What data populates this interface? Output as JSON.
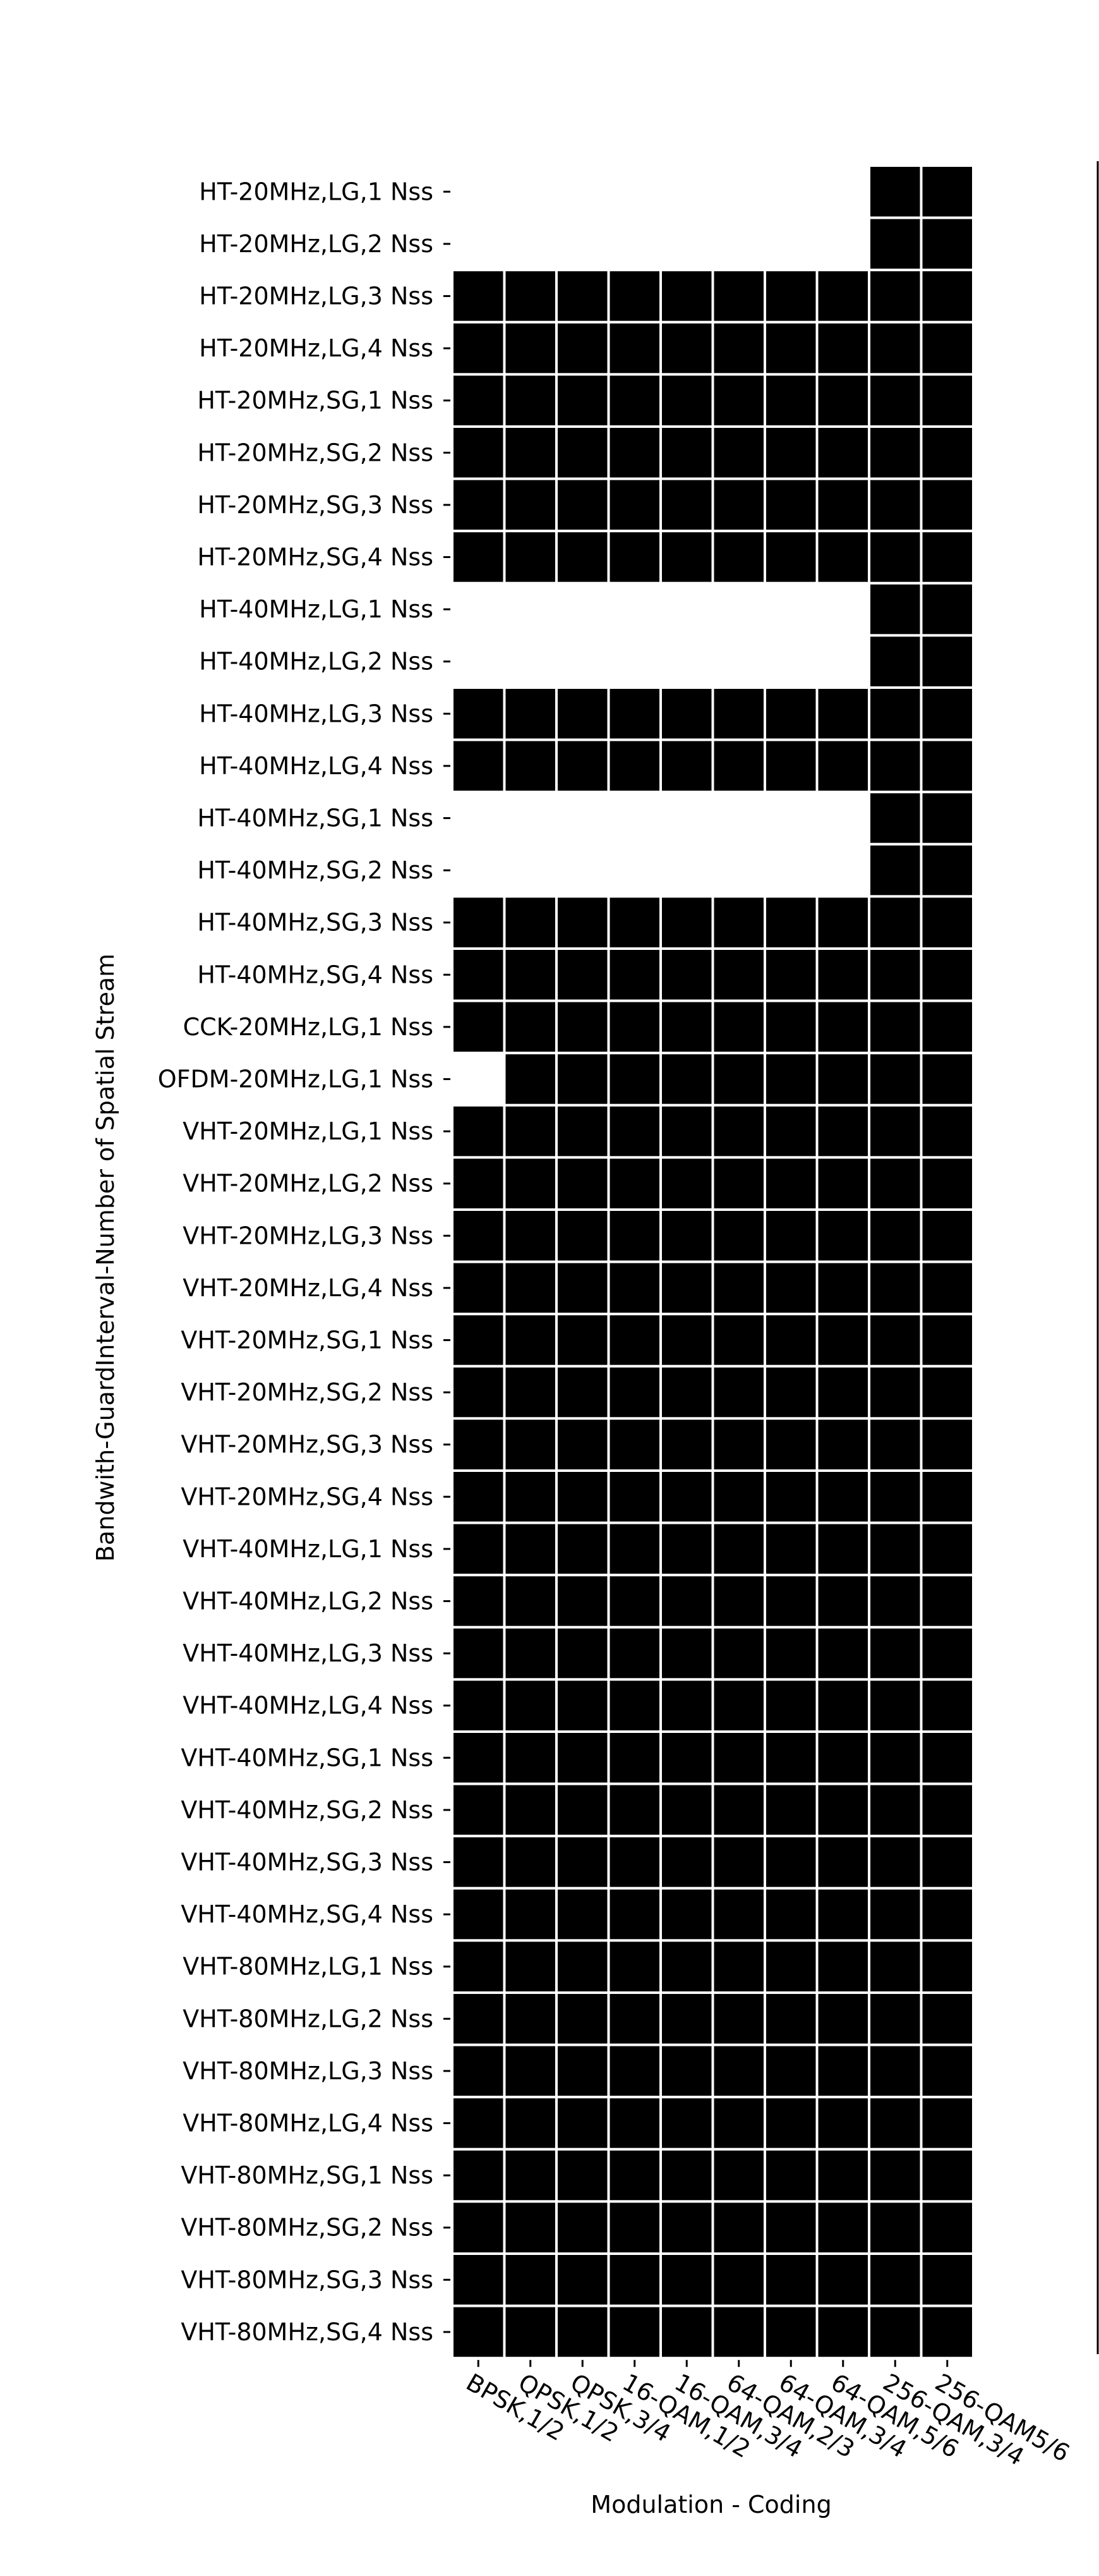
{
  "chart_data": {
    "type": "heatmap",
    "xlabel": "Modulation - Coding",
    "ylabel": "Bandwith-GuardInterval-Number of Spatial Stream",
    "columns": [
      "BPSK,1/2",
      "QPSK,1/2",
      "QPSK,3/4",
      "16-QAM,1/2",
      "16-QAM,3/4",
      "64-QAM,2/3",
      "64-QAM,3/4",
      "64-QAM,5/6",
      "256-QAM,3/4",
      "256-QAM5/6"
    ],
    "rows": [
      "HT-20MHz,LG,1 Nss",
      "HT-20MHz,LG,2 Nss",
      "HT-20MHz,LG,3 Nss",
      "HT-20MHz,LG,4 Nss",
      "HT-20MHz,SG,1 Nss",
      "HT-20MHz,SG,2 Nss",
      "HT-20MHz,SG,3 Nss",
      "HT-20MHz,SG,4 Nss",
      "HT-40MHz,LG,1 Nss",
      "HT-40MHz,LG,2 Nss",
      "HT-40MHz,LG,3 Nss",
      "HT-40MHz,LG,4 Nss",
      "HT-40MHz,SG,1 Nss",
      "HT-40MHz,SG,2 Nss",
      "HT-40MHz,SG,3 Nss",
      "HT-40MHz,SG,4 Nss",
      "CCK-20MHz,LG,1 Nss",
      "OFDM-20MHz,LG,1 Nss",
      "VHT-20MHz,LG,1 Nss",
      "VHT-20MHz,LG,2 Nss",
      "VHT-20MHz,LG,3 Nss",
      "VHT-20MHz,LG,4 Nss",
      "VHT-20MHz,SG,1 Nss",
      "VHT-20MHz,SG,2 Nss",
      "VHT-20MHz,SG,3 Nss",
      "VHT-20MHz,SG,4 Nss",
      "VHT-40MHz,LG,1 Nss",
      "VHT-40MHz,LG,2 Nss",
      "VHT-40MHz,LG,3 Nss",
      "VHT-40MHz,LG,4 Nss",
      "VHT-40MHz,SG,1 Nss",
      "VHT-40MHz,SG,2 Nss",
      "VHT-40MHz,SG,3 Nss",
      "VHT-40MHz,SG,4 Nss",
      "VHT-80MHz,LG,1 Nss",
      "VHT-80MHz,LG,2 Nss",
      "VHT-80MHz,LG,3 Nss",
      "VHT-80MHz,LG,4 Nss",
      "VHT-80MHz,SG,1 Nss",
      "VHT-80MHz,SG,2 Nss",
      "VHT-80MHz,SG,3 Nss",
      "VHT-80MHz,SG,4 Nss"
    ],
    "values": [
      [
        0,
        0,
        0,
        0,
        0,
        0,
        0,
        0,
        1,
        1
      ],
      [
        0,
        0,
        0,
        0,
        0,
        0,
        0,
        0,
        1,
        1
      ],
      [
        1,
        1,
        1,
        1,
        1,
        1,
        1,
        1,
        1,
        1
      ],
      [
        1,
        1,
        1,
        1,
        1,
        1,
        1,
        1,
        1,
        1
      ],
      [
        1,
        1,
        1,
        1,
        1,
        1,
        1,
        1,
        1,
        1
      ],
      [
        1,
        1,
        1,
        1,
        1,
        1,
        1,
        1,
        1,
        1
      ],
      [
        1,
        1,
        1,
        1,
        1,
        1,
        1,
        1,
        1,
        1
      ],
      [
        1,
        1,
        1,
        1,
        1,
        1,
        1,
        1,
        1,
        1
      ],
      [
        0,
        0,
        0,
        0,
        0,
        0,
        0,
        0,
        1,
        1
      ],
      [
        0,
        0,
        0,
        0,
        0,
        0,
        0,
        0,
        1,
        1
      ],
      [
        1,
        1,
        1,
        1,
        1,
        1,
        1,
        1,
        1,
        1
      ],
      [
        1,
        1,
        1,
        1,
        1,
        1,
        1,
        1,
        1,
        1
      ],
      [
        0,
        0,
        0,
        0,
        0,
        0,
        0,
        0,
        1,
        1
      ],
      [
        0,
        0,
        0,
        0,
        0,
        0,
        0,
        0,
        1,
        1
      ],
      [
        1,
        1,
        1,
        1,
        1,
        1,
        1,
        1,
        1,
        1
      ],
      [
        1,
        1,
        1,
        1,
        1,
        1,
        1,
        1,
        1,
        1
      ],
      [
        1,
        1,
        1,
        1,
        1,
        1,
        1,
        1,
        1,
        1
      ],
      [
        0,
        1,
        1,
        1,
        1,
        1,
        1,
        1,
        1,
        1
      ],
      [
        1,
        1,
        1,
        1,
        1,
        1,
        1,
        1,
        1,
        1
      ],
      [
        1,
        1,
        1,
        1,
        1,
        1,
        1,
        1,
        1,
        1
      ],
      [
        1,
        1,
        1,
        1,
        1,
        1,
        1,
        1,
        1,
        1
      ],
      [
        1,
        1,
        1,
        1,
        1,
        1,
        1,
        1,
        1,
        1
      ],
      [
        1,
        1,
        1,
        1,
        1,
        1,
        1,
        1,
        1,
        1
      ],
      [
        1,
        1,
        1,
        1,
        1,
        1,
        1,
        1,
        1,
        1
      ],
      [
        1,
        1,
        1,
        1,
        1,
        1,
        1,
        1,
        1,
        1
      ],
      [
        1,
        1,
        1,
        1,
        1,
        1,
        1,
        1,
        1,
        1
      ],
      [
        1,
        1,
        1,
        1,
        1,
        1,
        1,
        1,
        1,
        1
      ],
      [
        1,
        1,
        1,
        1,
        1,
        1,
        1,
        1,
        1,
        1
      ],
      [
        1,
        1,
        1,
        1,
        1,
        1,
        1,
        1,
        1,
        1
      ],
      [
        1,
        1,
        1,
        1,
        1,
        1,
        1,
        1,
        1,
        1
      ],
      [
        1,
        1,
        1,
        1,
        1,
        1,
        1,
        1,
        1,
        1
      ],
      [
        1,
        1,
        1,
        1,
        1,
        1,
        1,
        1,
        1,
        1
      ],
      [
        1,
        1,
        1,
        1,
        1,
        1,
        1,
        1,
        1,
        1
      ],
      [
        1,
        1,
        1,
        1,
        1,
        1,
        1,
        1,
        1,
        1
      ],
      [
        1,
        1,
        1,
        1,
        1,
        1,
        1,
        1,
        1,
        1
      ],
      [
        1,
        1,
        1,
        1,
        1,
        1,
        1,
        1,
        1,
        1
      ],
      [
        1,
        1,
        1,
        1,
        1,
        1,
        1,
        1,
        1,
        1
      ],
      [
        1,
        1,
        1,
        1,
        1,
        1,
        1,
        1,
        1,
        1
      ],
      [
        1,
        1,
        1,
        1,
        1,
        1,
        1,
        1,
        1,
        1
      ],
      [
        1,
        1,
        1,
        1,
        1,
        1,
        1,
        1,
        1,
        1
      ],
      [
        1,
        1,
        1,
        1,
        1,
        1,
        1,
        1,
        1,
        1
      ],
      [
        1,
        1,
        1,
        1,
        1,
        1,
        1,
        1,
        1,
        1
      ]
    ],
    "cell_color": "#000000",
    "grid_line_color": "#ffffff",
    "background": "#ffffff",
    "grid": true,
    "legend": "none"
  }
}
